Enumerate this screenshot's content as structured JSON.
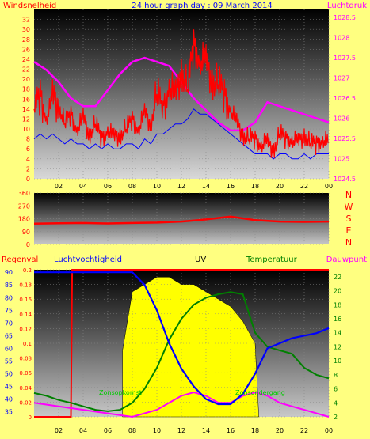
{
  "title": "24 hour graph day : 09 March 2014",
  "time_labels": [
    "02",
    "04",
    "06",
    "08",
    "10",
    "12",
    "14",
    "16",
    "18",
    "20",
    "22",
    "00"
  ],
  "colors": {
    "bg": "#ffff80",
    "wind": "#ff0000",
    "gust": "#0000ff",
    "pressure": "#ff00ff",
    "humidity": "#0000ff",
    "temp": "#008000",
    "dew": "#ff00ff",
    "rain": "#ff0000",
    "uv": "#ffff00"
  },
  "chart_data": [
    {
      "type": "line",
      "left_label": "Windsnelheid",
      "right_label": "Luchtdruk",
      "left_ticks": [
        0,
        2,
        4,
        6,
        8,
        10,
        12,
        14,
        16,
        18,
        20,
        22,
        24,
        26,
        28,
        30,
        32
      ],
      "right_ticks": [
        "1024.5",
        "1025",
        "1025.5",
        "1026",
        "1026.5",
        "1027",
        "1027.5",
        "1028",
        "1028.5"
      ],
      "ylim_left": [
        0,
        34
      ],
      "ylim_right": [
        1024.5,
        1028.7
      ],
      "series": [
        {
          "x": [
            0,
            0.5,
            1,
            1.5,
            2,
            2.5,
            3,
            3.5,
            4,
            4.5,
            5,
            5.5,
            6,
            6.5,
            7,
            7.5,
            8,
            8.5,
            9,
            9.5,
            10,
            10.5,
            11,
            11.5,
            12,
            12.5,
            13,
            13.5,
            14,
            14.5,
            15,
            15.5,
            16,
            16.5,
            17,
            17.5,
            18,
            18.5,
            19,
            19.5,
            20,
            20.5,
            21,
            21.5,
            22,
            22.5,
            23,
            23.5,
            24
          ],
          "values": [
            14,
            17,
            12,
            16,
            15,
            11,
            13,
            10,
            12,
            9,
            11,
            8,
            10,
            8,
            9,
            10,
            12,
            10,
            13,
            11,
            17,
            14,
            19,
            16,
            22,
            18,
            27,
            24,
            23,
            20,
            19,
            17,
            14,
            11,
            9,
            8,
            8,
            7,
            7,
            6,
            9,
            8,
            8,
            7,
            9,
            7,
            7,
            8,
            7
          ]
        },
        {
          "x": [
            0,
            0.5,
            1,
            1.5,
            2,
            2.5,
            3,
            3.5,
            4,
            4.5,
            5,
            5.5,
            6,
            6.5,
            7,
            7.5,
            8,
            8.5,
            9,
            9.5,
            10,
            10.5,
            11,
            11.5,
            12,
            12.5,
            13,
            13.5,
            14,
            14.5,
            15,
            15.5,
            16,
            16.5,
            17,
            17.5,
            18,
            18.5,
            19,
            19.5,
            20,
            20.5,
            21,
            21.5,
            22,
            22.5,
            23,
            23.5,
            24
          ],
          "values": [
            8,
            9,
            8,
            9,
            8,
            7,
            8,
            7,
            7,
            6,
            7,
            6,
            7,
            6,
            6,
            7,
            7,
            6,
            8,
            7,
            9,
            9,
            10,
            11,
            11,
            12,
            14,
            13,
            13,
            12,
            11,
            10,
            9,
            8,
            7,
            6,
            5,
            5,
            5,
            4,
            5,
            5,
            4,
            4,
            5,
            4,
            5,
            5,
            5
          ]
        },
        {
          "x": [
            0,
            1,
            2,
            3,
            4,
            5,
            6,
            7,
            8,
            9,
            10,
            11,
            12,
            13,
            14,
            15,
            16,
            17,
            18,
            19,
            20,
            21,
            22,
            23,
            24
          ],
          "values": [
            1027.4,
            1027.2,
            1026.9,
            1026.5,
            1026.3,
            1026.3,
            1026.7,
            1027.1,
            1027.4,
            1027.5,
            1027.4,
            1027.3,
            1026.9,
            1026.5,
            1026.2,
            1025.9,
            1025.7,
            1025.7,
            1025.9,
            1026.4,
            1026.3,
            1026.2,
            1026.1,
            1026.0,
            1025.9
          ]
        }
      ]
    },
    {
      "type": "line",
      "direction_ticks": [
        0,
        90,
        180,
        270,
        360
      ],
      "compass": [
        "N",
        "W",
        "S",
        "E",
        "N"
      ],
      "ylim": [
        0,
        360
      ],
      "x": [
        0,
        2,
        4,
        6,
        8,
        10,
        12,
        14,
        16,
        18,
        20,
        22,
        24
      ],
      "values": [
        145,
        148,
        150,
        147,
        150,
        153,
        160,
        175,
        195,
        170,
        160,
        158,
        160
      ]
    },
    {
      "type": "line",
      "labels": {
        "rain": "Regenval",
        "humidity": "Luchtvochtigheid",
        "uv": "UV",
        "temp": "Temperatuur",
        "dew": "Dauwpunt",
        "sunrise": "Zonsopkomst",
        "sunset": "Zonsondergang"
      },
      "rain_ticks": [
        "0",
        "0.02",
        "0.04",
        "0.06",
        "0.08",
        "0.1",
        "0.12",
        "0.14",
        "0.16",
        "0.18",
        "0.2"
      ],
      "humidity_ticks": [
        35,
        40,
        45,
        50,
        55,
        60,
        65,
        70,
        75,
        80,
        85,
        90
      ],
      "temp_ticks": [
        2,
        4,
        6,
        8,
        10,
        12,
        14,
        16,
        18,
        20,
        22
      ],
      "ylim_humidity": [
        33,
        91
      ],
      "ylim_temp": [
        2,
        23
      ],
      "humidity": {
        "x": [
          0,
          2,
          4,
          6,
          8,
          9,
          10,
          11,
          12,
          13,
          14,
          15,
          16,
          17,
          18,
          19,
          20,
          21,
          22,
          23,
          24
        ],
        "values": [
          90,
          90,
          90,
          90,
          90,
          85,
          75,
          62,
          52,
          45,
          40,
          38,
          38,
          42,
          50,
          60,
          62,
          64,
          65,
          66,
          68
        ]
      },
      "temp": {
        "x": [
          0,
          1,
          2,
          3,
          4,
          5,
          6,
          7,
          8,
          9,
          10,
          11,
          12,
          13,
          14,
          15,
          16,
          17,
          18,
          19,
          20,
          21,
          22,
          23,
          24
        ],
        "values": [
          5.4,
          5,
          4.4,
          4,
          3.5,
          3,
          2.8,
          3,
          4,
          6,
          9,
          13,
          16,
          18,
          19,
          19.5,
          19.8,
          19.5,
          14,
          12,
          11.5,
          11,
          9,
          8,
          7.5
        ]
      },
      "dew": {
        "x": [
          0,
          2,
          4,
          6,
          8,
          10,
          11,
          12,
          13,
          14,
          15,
          16,
          17,
          18,
          19,
          20,
          22,
          24
        ],
        "values": [
          4,
          3.5,
          3,
          2.5,
          2,
          3,
          4,
          5,
          5.5,
          5,
          4,
          4,
          5,
          5.5,
          5,
          4,
          3,
          2
        ]
      },
      "uv": {
        "x": [
          7.2,
          8,
          9,
          10,
          11,
          12,
          13,
          14,
          15,
          16,
          17,
          18,
          18.3
        ],
        "values": [
          0.09,
          0.17,
          0.18,
          0.19,
          0.19,
          0.18,
          0.18,
          0.17,
          0.16,
          0.15,
          0.13,
          0.1,
          0.0
        ]
      },
      "rain": {
        "x": [
          0,
          3,
          3.1,
          24
        ],
        "values": [
          0,
          0,
          0.2,
          0.2
        ]
      }
    }
  ]
}
